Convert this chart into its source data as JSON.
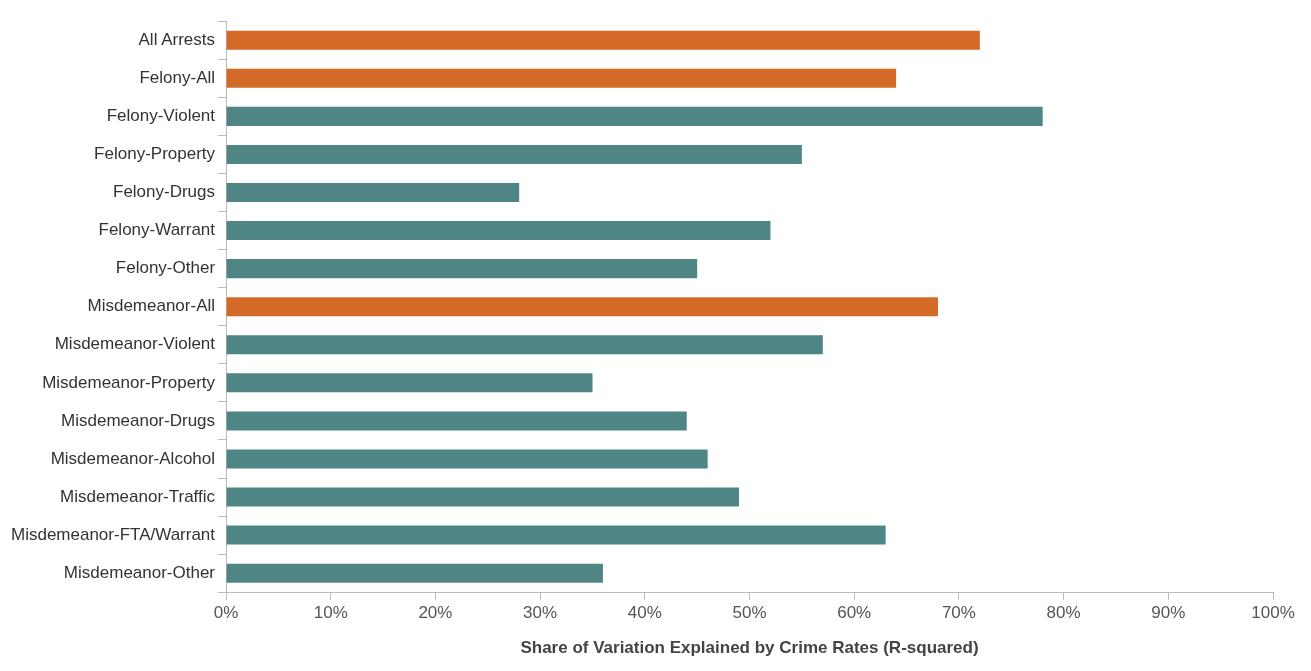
{
  "chart_data": {
    "type": "bar",
    "orientation": "horizontal",
    "xlabel": "Share of Variation Explained by Crime Rates (R-squared)",
    "categories": [
      "All Arrests",
      "Felony-All",
      "Felony-Violent",
      "Felony-Property",
      "Felony-Drugs",
      "Felony-Warrant",
      "Felony-Other",
      "Misdemeanor-All",
      "Misdemeanor-Violent",
      "Misdemeanor-Property",
      "Misdemeanor-Drugs",
      "Misdemeanor-Alcohol",
      "Misdemeanor-Traffic",
      "Misdemeanor-FTA/Warrant",
      "Misdemeanor-Other"
    ],
    "values": [
      72,
      64,
      78,
      55,
      28,
      52,
      45,
      68,
      57,
      35,
      44,
      46,
      49,
      63,
      36
    ],
    "colors": [
      "#d46a27",
      "#d46a27",
      "#4f8584",
      "#4f8584",
      "#4f8584",
      "#4f8584",
      "#4f8584",
      "#d46a27",
      "#4f8584",
      "#4f8584",
      "#4f8584",
      "#4f8584",
      "#4f8584",
      "#4f8584",
      "#4f8584"
    ],
    "xlim": [
      0,
      100
    ],
    "xticks": [
      {
        "value": 0,
        "label": "0%"
      },
      {
        "value": 10,
        "label": "10%"
      },
      {
        "value": 20,
        "label": "20%"
      },
      {
        "value": 30,
        "label": "30%"
      },
      {
        "value": 40,
        "label": "40%"
      },
      {
        "value": 50,
        "label": "50%"
      },
      {
        "value": 60,
        "label": "60%"
      },
      {
        "value": 70,
        "label": "70%"
      },
      {
        "value": 80,
        "label": "80%"
      },
      {
        "value": 90,
        "label": "90%"
      },
      {
        "value": 100,
        "label": "100%"
      }
    ],
    "grid": false,
    "legend": false
  }
}
